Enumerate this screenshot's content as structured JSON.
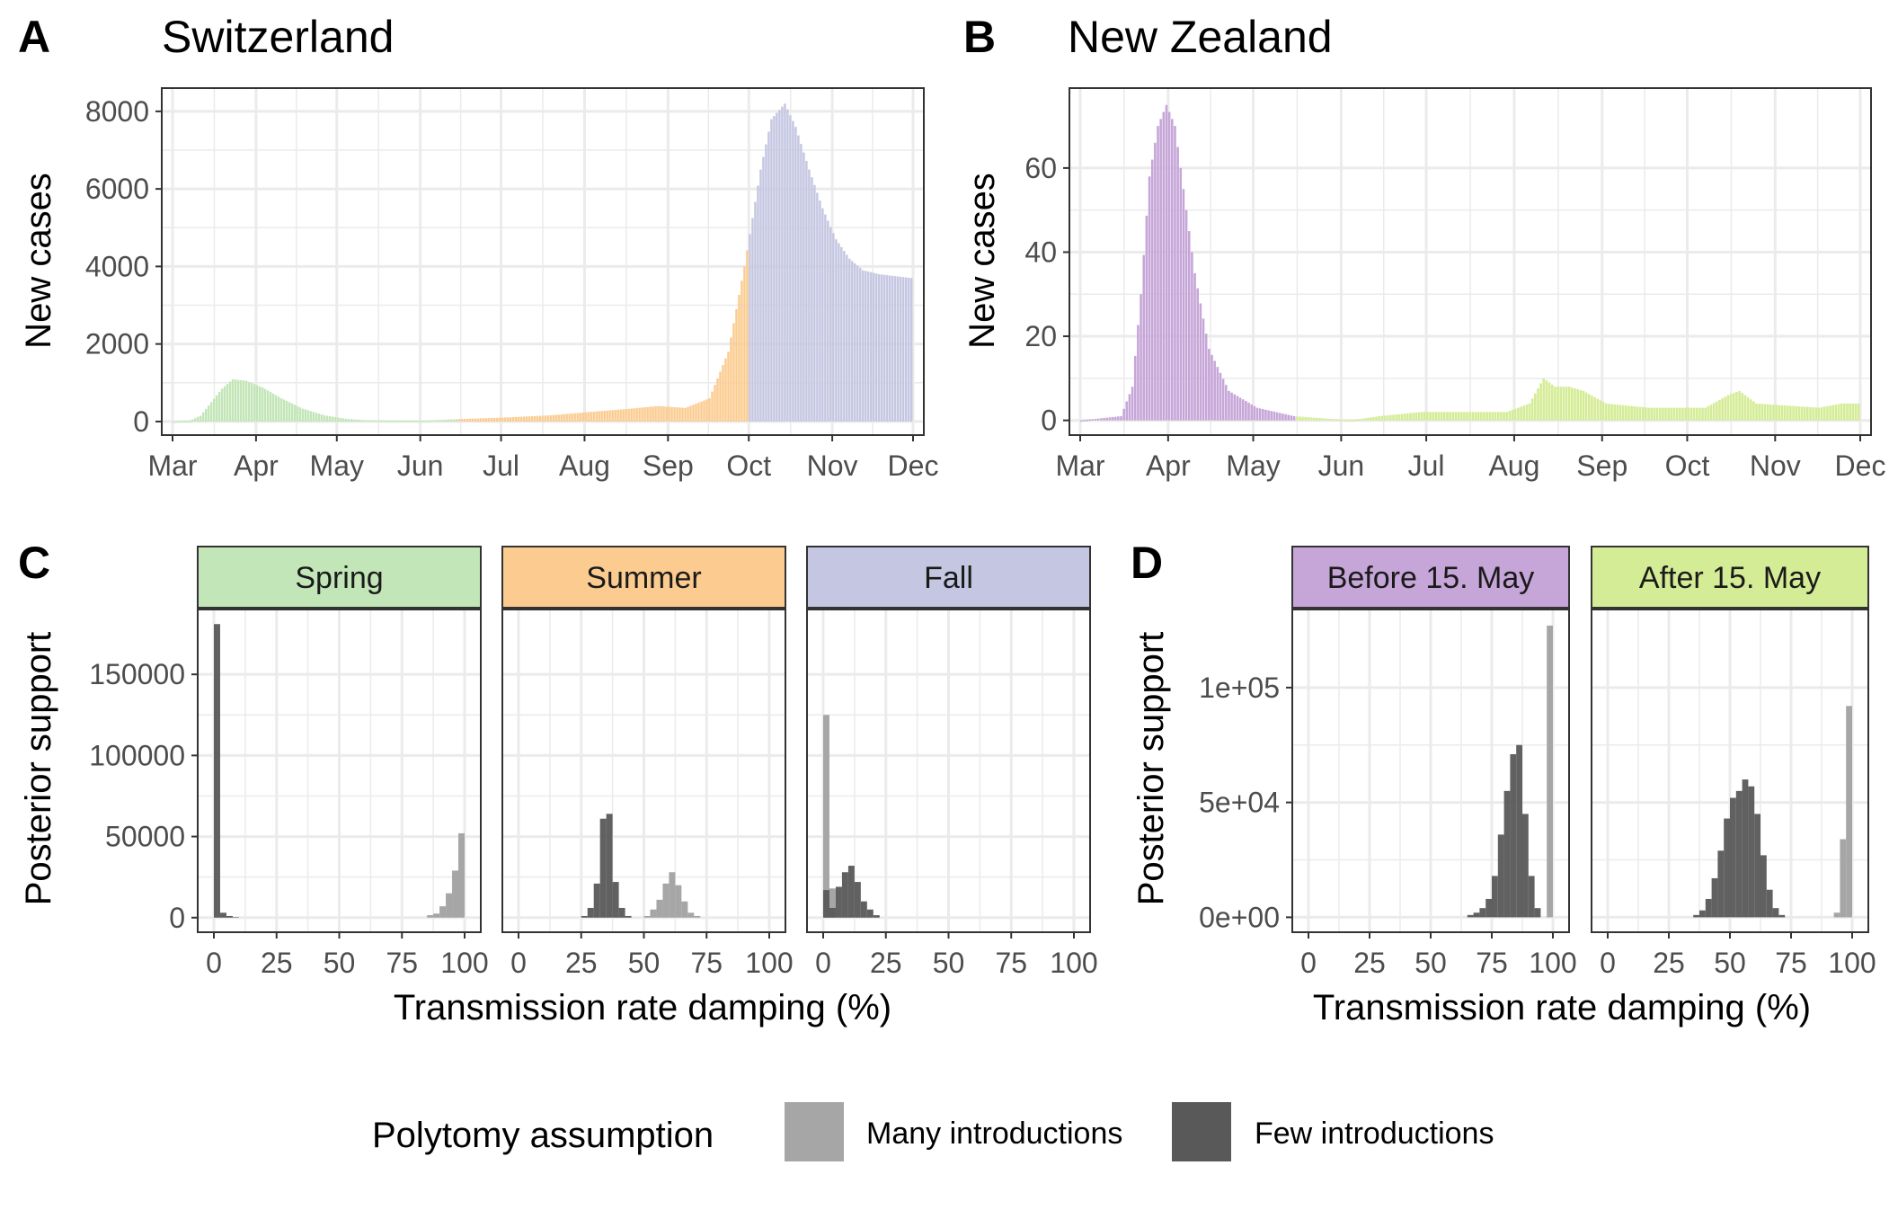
{
  "legend": {
    "title": "Polytomy assumption",
    "items": [
      {
        "label": "Many introductions",
        "color": "#a6a6a6"
      },
      {
        "label": "Few introductions",
        "color": "#595959"
      }
    ]
  },
  "chart_data": [
    {
      "panel": "A",
      "title": "Switzerland",
      "type": "bar",
      "xlabel": "",
      "ylabel": "New cases",
      "x_ticks": [
        "Mar",
        "Apr",
        "May",
        "Jun",
        "Jul",
        "Aug",
        "Sep",
        "Oct",
        "Nov",
        "Dec"
      ],
      "y_ticks": [
        "0",
        "2000",
        "4000",
        "6000",
        "8000"
      ],
      "ylim": [
        -350,
        8600
      ],
      "period_colors": {
        "Spring": "#c2e6b8",
        "Summer": "#fbcb8f",
        "Fall": "#c5c6e2"
      },
      "periods": [
        {
          "name": "Spring",
          "from": "Mar",
          "to": "mid-Jun"
        },
        {
          "name": "Summer",
          "from": "mid-Jun",
          "to": "end-Sep"
        },
        {
          "name": "Fall",
          "from": "Oct",
          "to": "end-Nov"
        }
      ],
      "curve_points": [
        {
          "day": 0,
          "value": 0
        },
        {
          "day": 6,
          "value": 20
        },
        {
          "day": 10,
          "value": 150
        },
        {
          "day": 14,
          "value": 500
        },
        {
          "day": 18,
          "value": 850
        },
        {
          "day": 22,
          "value": 1090
        },
        {
          "day": 27,
          "value": 1050
        },
        {
          "day": 33,
          "value": 880
        },
        {
          "day": 40,
          "value": 600
        },
        {
          "day": 48,
          "value": 330
        },
        {
          "day": 56,
          "value": 160
        },
        {
          "day": 64,
          "value": 70
        },
        {
          "day": 72,
          "value": 30
        },
        {
          "day": 92,
          "value": 20
        },
        {
          "day": 105,
          "value": 60
        },
        {
          "day": 122,
          "value": 100
        },
        {
          "day": 140,
          "value": 160
        },
        {
          "day": 155,
          "value": 250
        },
        {
          "day": 168,
          "value": 320
        },
        {
          "day": 180,
          "value": 400
        },
        {
          "day": 190,
          "value": 350
        },
        {
          "day": 199,
          "value": 600
        },
        {
          "day": 206,
          "value": 1800
        },
        {
          "day": 212,
          "value": 4000
        },
        {
          "day": 218,
          "value": 6500
        },
        {
          "day": 222,
          "value": 7800
        },
        {
          "day": 227,
          "value": 8200
        },
        {
          "day": 231,
          "value": 7600
        },
        {
          "day": 236,
          "value": 6500
        },
        {
          "day": 241,
          "value": 5500
        },
        {
          "day": 246,
          "value": 4700
        },
        {
          "day": 251,
          "value": 4200
        },
        {
          "day": 256,
          "value": 3900
        },
        {
          "day": 262,
          "value": 3800
        },
        {
          "day": 274,
          "value": 3700
        }
      ]
    },
    {
      "panel": "B",
      "title": "New Zealand",
      "type": "bar",
      "xlabel": "",
      "ylabel": "New cases",
      "x_ticks": [
        "Mar",
        "Apr",
        "May",
        "Jun",
        "Jul",
        "Aug",
        "Sep",
        "Oct",
        "Nov",
        "Dec"
      ],
      "y_ticks": [
        "0",
        "20",
        "40",
        "60"
      ],
      "ylim": [
        -3.5,
        79
      ],
      "period_colors": {
        "Before 15. May": "#c6a6d8",
        "After 15. May": "#d4ec95"
      },
      "periods": [
        {
          "name": "Before 15. May",
          "from": "Mar",
          "to": "15. May"
        },
        {
          "name": "After 15. May",
          "from": "15. May",
          "to": "end-Nov"
        }
      ],
      "curve_points": [
        {
          "day": 0,
          "value": 0
        },
        {
          "day": 14,
          "value": 1
        },
        {
          "day": 18,
          "value": 8
        },
        {
          "day": 21,
          "value": 30
        },
        {
          "day": 24,
          "value": 58
        },
        {
          "day": 27,
          "value": 70
        },
        {
          "day": 30,
          "value": 75
        },
        {
          "day": 33,
          "value": 70
        },
        {
          "day": 36,
          "value": 55
        },
        {
          "day": 40,
          "value": 35
        },
        {
          "day": 45,
          "value": 17
        },
        {
          "day": 52,
          "value": 7
        },
        {
          "day": 62,
          "value": 3
        },
        {
          "day": 75,
          "value": 1
        },
        {
          "day": 95,
          "value": 0
        },
        {
          "day": 105,
          "value": 1
        },
        {
          "day": 120,
          "value": 2
        },
        {
          "day": 150,
          "value": 2
        },
        {
          "day": 158,
          "value": 4
        },
        {
          "day": 163,
          "value": 10
        },
        {
          "day": 167,
          "value": 8
        },
        {
          "day": 172,
          "value": 8
        },
        {
          "day": 177,
          "value": 7
        },
        {
          "day": 185,
          "value": 4
        },
        {
          "day": 200,
          "value": 3
        },
        {
          "day": 220,
          "value": 3
        },
        {
          "day": 228,
          "value": 6
        },
        {
          "day": 232,
          "value": 7
        },
        {
          "day": 238,
          "value": 4
        },
        {
          "day": 260,
          "value": 3
        },
        {
          "day": 268,
          "value": 4
        },
        {
          "day": 274,
          "value": 4
        }
      ]
    },
    {
      "panel": "C",
      "type": "bar",
      "xlabel": "Transmission rate damping (%)",
      "ylabel": "Posterior support",
      "x_ticks": [
        "0",
        "25",
        "50",
        "75",
        "100"
      ],
      "y_ticks": [
        "0",
        "50000",
        "100000",
        "150000"
      ],
      "ylim": [
        -9000,
        190000
      ],
      "bin_width": 2.5,
      "facets": [
        {
          "name": "Spring",
          "color": "#c2e6b8",
          "series": [
            {
              "name": "Many introductions",
              "bins": [
                {
                  "x": 85,
                  "v": 1500
                },
                {
                  "x": 87.5,
                  "v": 2500
                },
                {
                  "x": 90,
                  "v": 7000
                },
                {
                  "x": 92.5,
                  "v": 15000
                },
                {
                  "x": 95,
                  "v": 29000
                },
                {
                  "x": 97.5,
                  "v": 52000
                }
              ]
            },
            {
              "name": "Few introductions",
              "bins": [
                {
                  "x": 0,
                  "v": 181000
                },
                {
                  "x": 2.5,
                  "v": 3000
                },
                {
                  "x": 5,
                  "v": 1000
                },
                {
                  "x": 7.5,
                  "v": 300
                }
              ]
            }
          ]
        },
        {
          "name": "Summer",
          "color": "#fbcb8f",
          "series": [
            {
              "name": "Many introductions",
              "bins": [
                {
                  "x": 50,
                  "v": 1000
                },
                {
                  "x": 52.5,
                  "v": 5000
                },
                {
                  "x": 55,
                  "v": 11000
                },
                {
                  "x": 57.5,
                  "v": 21000
                },
                {
                  "x": 60,
                  "v": 28000
                },
                {
                  "x": 62.5,
                  "v": 20000
                },
                {
                  "x": 65,
                  "v": 10000
                },
                {
                  "x": 67.5,
                  "v": 3000
                },
                {
                  "x": 70,
                  "v": 1000
                }
              ]
            },
            {
              "name": "Few introductions",
              "bins": [
                {
                  "x": 25,
                  "v": 1000
                },
                {
                  "x": 27.5,
                  "v": 6000
                },
                {
                  "x": 30,
                  "v": 21000
                },
                {
                  "x": 32.5,
                  "v": 61000
                },
                {
                  "x": 35,
                  "v": 64000
                },
                {
                  "x": 37.5,
                  "v": 22000
                },
                {
                  "x": 40,
                  "v": 6000
                },
                {
                  "x": 42.5,
                  "v": 1000
                }
              ]
            }
          ]
        },
        {
          "name": "Fall",
          "color": "#c5c6e2",
          "series": [
            {
              "name": "Many introductions",
              "bins": [
                {
                  "x": 0,
                  "v": 125000
                },
                {
                  "x": 2.5,
                  "v": 18000
                }
              ]
            },
            {
              "name": "Few introductions",
              "bins": [
                {
                  "x": 0,
                  "v": 17000
                },
                {
                  "x": 2.5,
                  "v": 6000
                },
                {
                  "x": 5,
                  "v": 19000
                },
                {
                  "x": 7.5,
                  "v": 28000
                },
                {
                  "x": 10,
                  "v": 32000
                },
                {
                  "x": 12.5,
                  "v": 22000
                },
                {
                  "x": 15,
                  "v": 10000
                },
                {
                  "x": 17.5,
                  "v": 5000
                },
                {
                  "x": 20,
                  "v": 1500
                }
              ]
            }
          ]
        }
      ]
    },
    {
      "panel": "D",
      "type": "bar",
      "xlabel": "Transmission rate damping (%)",
      "ylabel": "Posterior support",
      "x_ticks": [
        "0",
        "25",
        "50",
        "75",
        "100"
      ],
      "y_ticks": [
        "0e+00",
        "5e+04",
        "1e+05"
      ],
      "ylim": [
        -6500,
        134000
      ],
      "bin_width": 2.5,
      "facets": [
        {
          "name": "Before 15. May",
          "color": "#c6a6d8",
          "series": [
            {
              "name": "Many introductions",
              "bins": [
                {
                  "x": 97.5,
                  "v": 127000
                }
              ]
            },
            {
              "name": "Few introductions",
              "bins": [
                {
                  "x": 65,
                  "v": 1000
                },
                {
                  "x": 67.5,
                  "v": 2000
                },
                {
                  "x": 70,
                  "v": 4000
                },
                {
                  "x": 72.5,
                  "v": 8000
                },
                {
                  "x": 75,
                  "v": 18000
                },
                {
                  "x": 77.5,
                  "v": 36000
                },
                {
                  "x": 80,
                  "v": 55000
                },
                {
                  "x": 82.5,
                  "v": 71000
                },
                {
                  "x": 85,
                  "v": 75000
                },
                {
                  "x": 87.5,
                  "v": 45000
                },
                {
                  "x": 90,
                  "v": 18000
                },
                {
                  "x": 92.5,
                  "v": 4000
                }
              ]
            }
          ]
        },
        {
          "name": "After 15. May",
          "color": "#d4ec95",
          "series": [
            {
              "name": "Many introductions",
              "bins": [
                {
                  "x": 92.5,
                  "v": 2000
                },
                {
                  "x": 95,
                  "v": 34000
                },
                {
                  "x": 97.5,
                  "v": 92000
                }
              ]
            },
            {
              "name": "Few introductions",
              "bins": [
                {
                  "x": 35,
                  "v": 1000
                },
                {
                  "x": 37.5,
                  "v": 3000
                },
                {
                  "x": 40,
                  "v": 8000
                },
                {
                  "x": 42.5,
                  "v": 17000
                },
                {
                  "x": 45,
                  "v": 29000
                },
                {
                  "x": 47.5,
                  "v": 43000
                },
                {
                  "x": 50,
                  "v": 52000
                },
                {
                  "x": 52.5,
                  "v": 55000
                },
                {
                  "x": 55,
                  "v": 60000
                },
                {
                  "x": 57.5,
                  "v": 57000
                },
                {
                  "x": 60,
                  "v": 45000
                },
                {
                  "x": 62.5,
                  "v": 27000
                },
                {
                  "x": 65,
                  "v": 12000
                },
                {
                  "x": 67.5,
                  "v": 4000
                },
                {
                  "x": 70,
                  "v": 1000
                }
              ]
            }
          ]
        }
      ]
    }
  ]
}
